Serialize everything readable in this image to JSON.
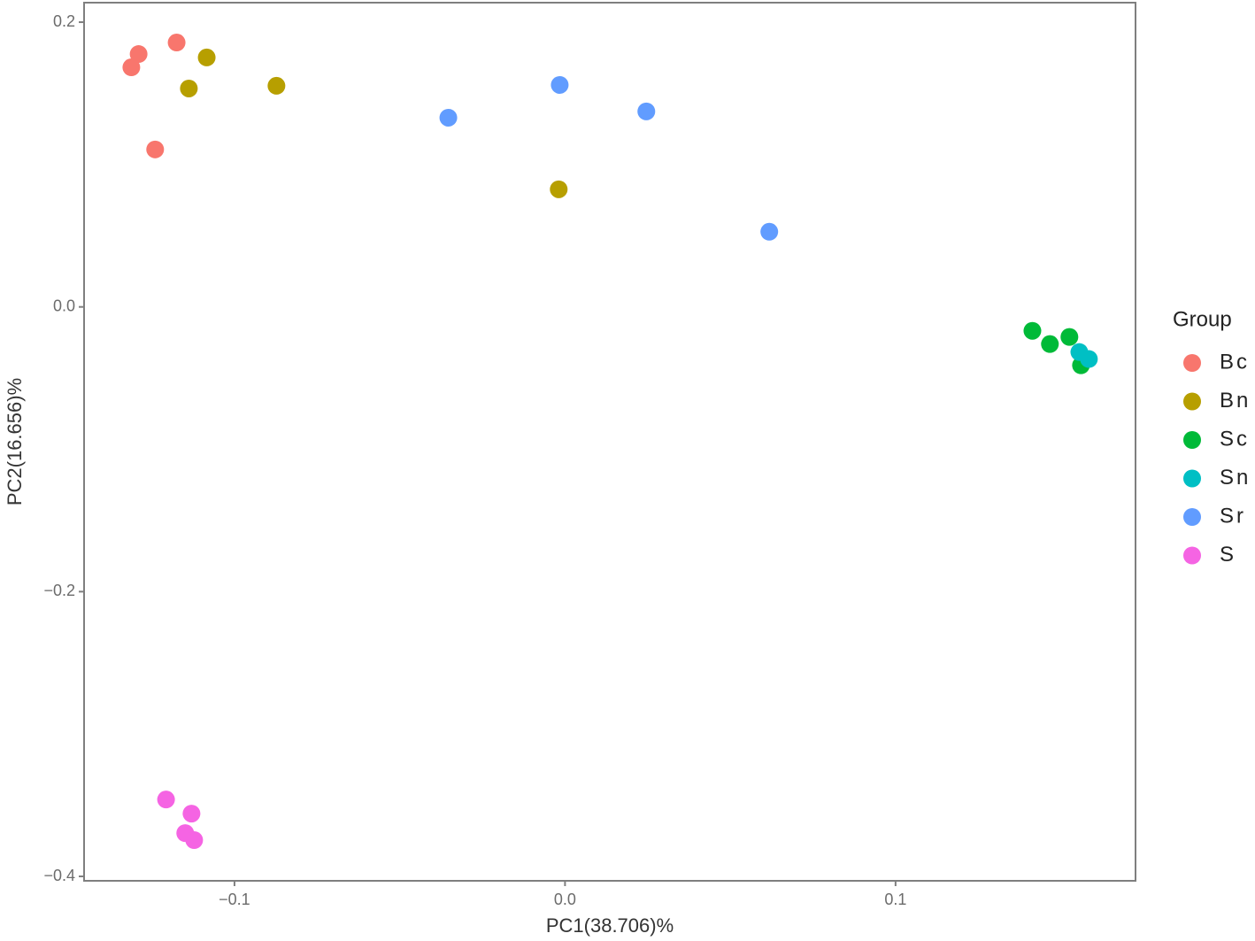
{
  "chart_data": {
    "type": "scatter",
    "x_label": "PC1(38.706)%",
    "y_label": "PC2(16.656)%",
    "legend_title": "Group",
    "legend_position": "right",
    "grid": false,
    "xlim": [
      -0.1455,
      0.1726
    ],
    "ylim": [
      -0.4031,
      0.2137
    ],
    "xticks": [
      {
        "value": -0.1,
        "label": "−0.1"
      },
      {
        "value": 0,
        "label": "0.0"
      },
      {
        "value": 0.1,
        "label": "0.1"
      }
    ],
    "yticks": [
      {
        "value": -0.4,
        "label": "−0.4"
      },
      {
        "value": -0.2,
        "label": "−0.2"
      },
      {
        "value": 0,
        "label": "0.0"
      },
      {
        "value": 0.2,
        "label": "0.2"
      }
    ],
    "series": [
      {
        "name": "Bc",
        "color": "#F8766D",
        "x": [
          -0.1312,
          -0.129,
          -0.1175,
          -0.124
        ],
        "y": [
          0.1683,
          0.1776,
          0.1857,
          0.1106
        ]
      },
      {
        "name": "Bn",
        "color": "#B79F00",
        "x": [
          -0.1084,
          -0.1138,
          -0.0873,
          -0.0019
        ],
        "y": [
          0.1752,
          0.1534,
          0.1553,
          0.0826
        ]
      },
      {
        "name": "Sc",
        "color": "#00BA38",
        "x": [
          0.1414,
          0.1467,
          0.1526,
          0.1561
        ],
        "y": [
          -0.0168,
          -0.0261,
          -0.0211,
          -0.041
        ]
      },
      {
        "name": "Sn",
        "color": "#00BFC4",
        "x": [
          0.1556,
          0.1585
        ],
        "y": [
          -0.0317,
          -0.0366
        ]
      },
      {
        "name": "Sr",
        "color": "#619CFF",
        "x": [
          -0.0353,
          -0.0016,
          0.0246,
          0.0618
        ],
        "y": [
          0.1329,
          0.1559,
          0.1373,
          0.0528
        ]
      },
      {
        "name": "S",
        "color": "#F564E3",
        "x": [
          -0.1207,
          -0.113,
          -0.1149,
          -0.1122
        ],
        "y": [
          -0.346,
          -0.3559,
          -0.3696,
          -0.3745
        ]
      }
    ]
  }
}
